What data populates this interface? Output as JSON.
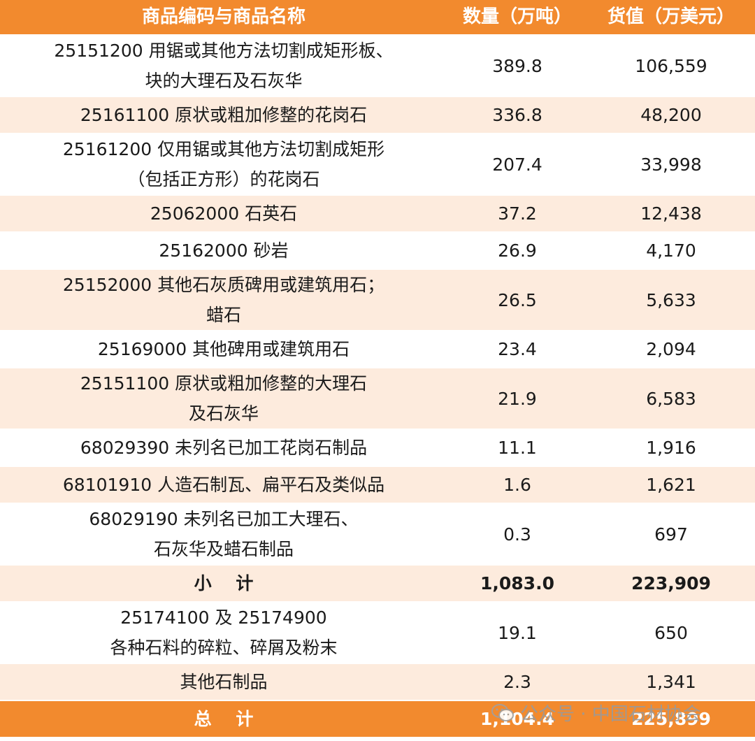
{
  "header": {
    "name": "商品编码与商品名称",
    "qty": "数量（万吨）",
    "value": "货值（万美元）"
  },
  "rows": [
    {
      "name": [
        "25151200  用锯或其他方法切割成矩形板、",
        "块的大理石及石灰华"
      ],
      "qty": "389.8",
      "value": "106,559"
    },
    {
      "name": [
        "25161100  原状或粗加修整的花岗石"
      ],
      "qty": "336.8",
      "value": "48,200"
    },
    {
      "name": [
        "25161200  仅用锯或其他方法切割成矩形",
        "（包括正方形）的花岗石"
      ],
      "qty": "207.4",
      "value": "33,998"
    },
    {
      "name": [
        "25062000  石英石"
      ],
      "qty": "37.2",
      "value": "12,438"
    },
    {
      "name": [
        "25162000  砂岩"
      ],
      "qty": "26.9",
      "value": "4,170"
    },
    {
      "name": [
        "25152000  其他石灰质碑用或建筑用石；",
        "蜡石"
      ],
      "qty": "26.5",
      "value": "5,633"
    },
    {
      "name": [
        "25169000  其他碑用或建筑用石"
      ],
      "qty": "23.4",
      "value": "2,094"
    },
    {
      "name": [
        "25151100  原状或粗加修整的大理石",
        "及石灰华"
      ],
      "qty": "21.9",
      "value": "6,583"
    },
    {
      "name": [
        "68029390  未列名已加工花岗石制品"
      ],
      "qty": "11.1",
      "value": "1,916"
    },
    {
      "name": [
        "68101910  人造石制瓦、扁平石及类似品"
      ],
      "qty": "1.6",
      "value": "1,621"
    },
    {
      "name": [
        "68029190  未列名已加工大理石、",
        "石灰华及蜡石制品"
      ],
      "qty": "0.3",
      "value": "697"
    },
    {
      "name": [
        "小    计"
      ],
      "qty": "1,083.0",
      "value": "223,909"
    },
    {
      "name": [
        "25174100 及 25174900",
        "各种石料的碎粒、碎屑及粉末"
      ],
      "qty": "19.1",
      "value": "650"
    },
    {
      "name": [
        "其他石制品"
      ],
      "qty": "2.3",
      "value": "1,341"
    },
    {
      "name": [
        "总    计"
      ],
      "qty": "1,104.4",
      "value": "225,899"
    }
  ],
  "watermark": {
    "text": "公众号 · 中国石材协会",
    "icon": "wechat-icon"
  },
  "colors": {
    "header_bg": "#f28a2e",
    "stripe_bg": "#fdebdd",
    "white": "#ffffff",
    "text": "#1a1a1a"
  }
}
